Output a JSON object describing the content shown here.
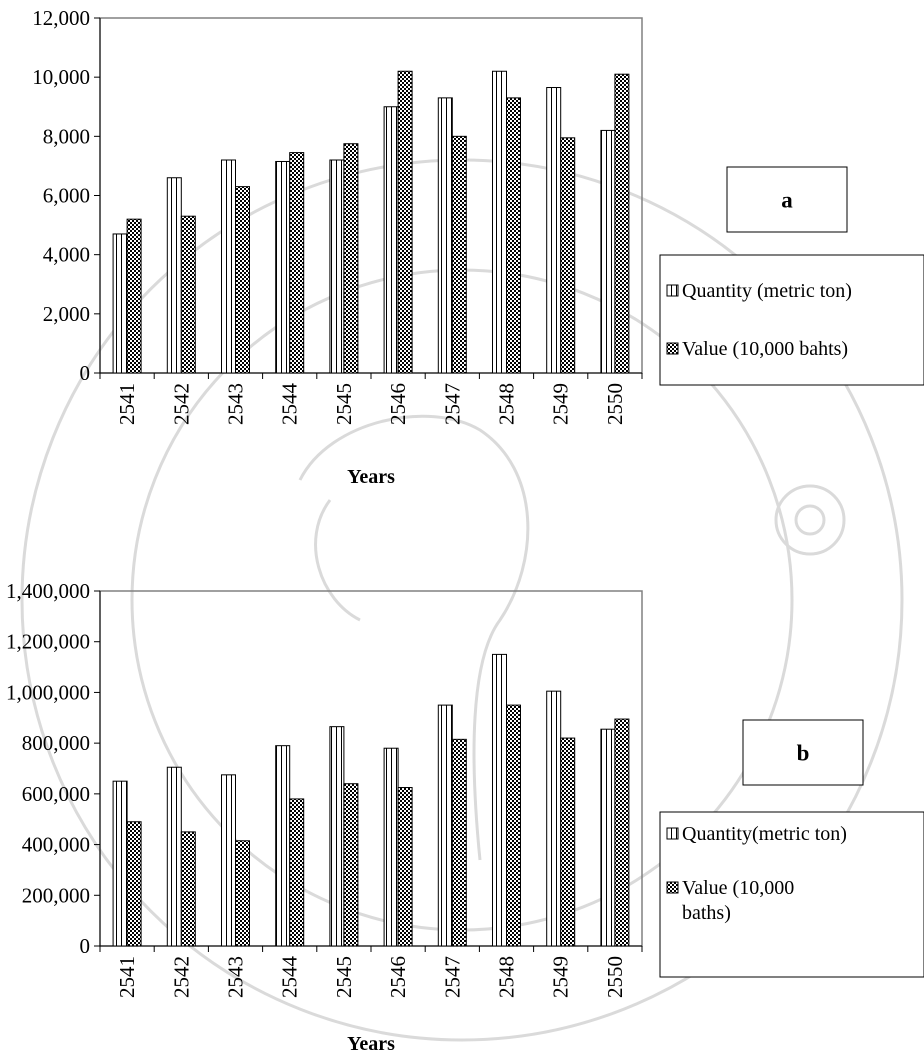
{
  "chart_data": [
    {
      "id": "a",
      "type": "bar",
      "panel_label": "a",
      "xlabel": "Years",
      "ylabel": "",
      "categories": [
        "2541",
        "2542",
        "2543",
        "2544",
        "2545",
        "2546",
        "2547",
        "2548",
        "2549",
        "2550"
      ],
      "ylim": [
        0,
        12000
      ],
      "yticks": [
        0,
        2000,
        4000,
        6000,
        8000,
        10000,
        12000
      ],
      "ytick_labels": [
        "0",
        "2,000",
        "4,000",
        "6,000",
        "8,000",
        "10,000",
        "12,000"
      ],
      "grid": false,
      "legend_position": "right",
      "series": [
        {
          "name": "Quantity (metric ton)",
          "pattern": "vertical-stripes",
          "values": [
            4700,
            6600,
            7200,
            7150,
            7200,
            9000,
            9300,
            10200,
            9650,
            8200
          ]
        },
        {
          "name": "Value (10,000 bahts)",
          "pattern": "checker",
          "values": [
            5200,
            5300,
            6300,
            7450,
            7750,
            10200,
            8000,
            9300,
            7950,
            10100
          ]
        }
      ]
    },
    {
      "id": "b",
      "type": "bar",
      "panel_label": "b",
      "xlabel": "Years",
      "ylabel": "",
      "categories": [
        "2541",
        "2542",
        "2543",
        "2544",
        "2545",
        "2546",
        "2547",
        "2548",
        "2549",
        "2550"
      ],
      "ylim": [
        0,
        1400000
      ],
      "yticks": [
        0,
        200000,
        400000,
        600000,
        800000,
        1000000,
        1200000,
        1400000
      ],
      "ytick_labels": [
        "0",
        "200,000",
        "400,000",
        "600,000",
        "800,000",
        "1,000,000",
        "1,200,000",
        "1,400,000"
      ],
      "grid": false,
      "legend_position": "right",
      "series": [
        {
          "name": "Quantity(metric ton)",
          "pattern": "vertical-stripes",
          "values": [
            650000,
            705000,
            675000,
            790000,
            865000,
            780000,
            950000,
            1150000,
            1005000,
            855000
          ]
        },
        {
          "name": "Value (10,000 baths)",
          "pattern": "checker",
          "values": [
            490000,
            450000,
            415000,
            580000,
            640000,
            625000,
            815000,
            950000,
            820000,
            895000
          ]
        }
      ]
    }
  ]
}
